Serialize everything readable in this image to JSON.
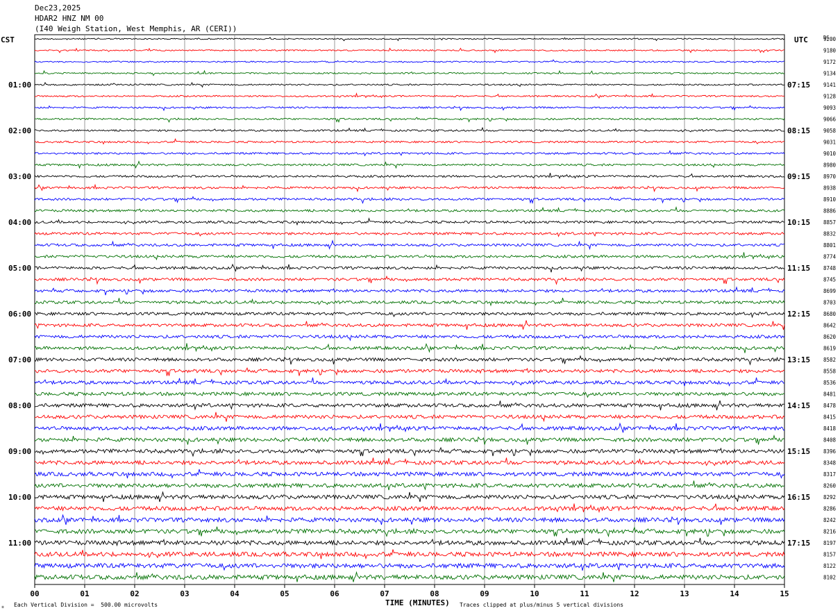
{
  "header": {
    "date": "Dec23,2025",
    "station": "HDAR2 HNZ NM 00",
    "location": "(I40 Weigh Station, West Memphis, AR (CERI))"
  },
  "axes": {
    "left_timezone": "CST",
    "right_timezone": "UTC",
    "dc_label": "DC",
    "x_title": "TIME (MINUTES)"
  },
  "footer": {
    "scale_note": "Each Vertical Division =  500.00 microvolts",
    "clip_note": "Traces clipped at plus/minus 5 vertical divisions"
  },
  "colors": {
    "trace_cycle": [
      "#000000",
      "#ff0000",
      "#0000ff",
      "#007000"
    ],
    "grid": "#000000",
    "background": "#ffffff"
  },
  "chart_data": {
    "type": "line",
    "title": "HDAR2 HNZ NM 00",
    "xlabel": "TIME (MINUTES)",
    "xlim": [
      0,
      15
    ],
    "x_ticks": [
      "00",
      "01",
      "02",
      "03",
      "04",
      "05",
      "06",
      "07",
      "08",
      "09",
      "10",
      "11",
      "12",
      "13",
      "14",
      "15"
    ],
    "left_hour_labels": [
      "01:00",
      "02:00",
      "03:00",
      "04:00",
      "05:00",
      "06:00",
      "07:00",
      "08:00",
      "09:00",
      "10:00",
      "11:00"
    ],
    "right_hour_labels": [
      "07:15",
      "08:15",
      "09:15",
      "10:15",
      "11:15",
      "12:15",
      "13:15",
      "14:15",
      "15:15",
      "16:15",
      "17:15"
    ],
    "hour_label_first_row": 4,
    "hour_label_every_rows": 4,
    "row_minutes": 15,
    "row_count": 48,
    "dc_offsets": [
      "9200",
      "9180",
      "9172",
      "9134",
      "9141",
      "9128",
      "9093",
      "9066",
      "9058",
      "9031",
      "9010",
      "8980",
      "8970",
      "8938",
      "8910",
      "8886",
      "8857",
      "8832",
      "8801",
      "8774",
      "8748",
      "8745",
      "8699",
      "8703",
      "8680",
      "8642",
      "8620",
      "8619",
      "8582",
      "8558",
      "8536",
      "8481",
      "8478",
      "8415",
      "8418",
      "8408",
      "8396",
      "8348",
      "8317",
      "8260",
      "8292",
      "8286",
      "8242",
      "8216",
      "8197",
      "8157",
      "8122",
      "8102"
    ],
    "vertical_division_microvolts": 500.0,
    "clip_divisions": 5,
    "grid": true
  }
}
